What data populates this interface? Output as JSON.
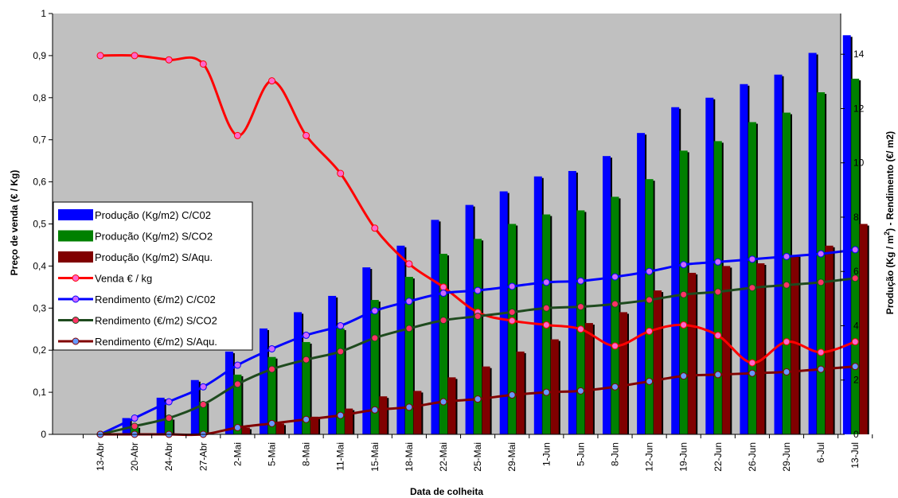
{
  "chart_data": {
    "type": "bar",
    "categories": [
      "13-Abr",
      "20-Abr",
      "24-Abr",
      "27-Abr",
      "2-Mai",
      "5-Mai",
      "8-Mai",
      "11-Mai",
      "15-Mai",
      "18-Mai",
      "22-Mai",
      "25-Mai",
      "29-Mai",
      "1-Jun",
      "5-Jun",
      "8-Jun",
      "12-Jun",
      "19-Jun",
      "22-Jun",
      "26-Jun",
      "29-Jun",
      "6-Jul",
      "13-Jul"
    ],
    "xlabel": "Data de colheita",
    "ylabel_left": "Preço de venda (€ / Kg)",
    "ylabel_right_parts": [
      "Produção (Kg / m",
      "2",
      ") - Rendimento (€/ m2)"
    ],
    "ylim_left": [
      0,
      1
    ],
    "yticks_left": [
      "0",
      "0,1",
      "0,2",
      "0,3",
      "0,4",
      "0,5",
      "0,6",
      "0,7",
      "0,8",
      "0,9",
      "1"
    ],
    "ylim_right": [
      0,
      15.5
    ],
    "yticks_right": [
      "0",
      "2",
      "4",
      "6",
      "8",
      "10",
      "12",
      "14"
    ],
    "grid": false,
    "plot_background": "#c0c0c0",
    "legend_position": "center-left",
    "bar_series": [
      {
        "name": "Produção (Kg/m2)  C/C02",
        "color": "#0000ff",
        "axis": "right",
        "values": [
          0,
          0.6,
          1.35,
          2.0,
          3.05,
          3.9,
          4.5,
          5.1,
          6.15,
          6.95,
          7.9,
          8.45,
          8.95,
          9.5,
          9.7,
          10.25,
          11.1,
          12.05,
          12.4,
          12.9,
          13.25,
          14.05,
          14.7
        ]
      },
      {
        "name": "Produção (Kg/m2) S/CO2",
        "color": "#008000",
        "axis": "right",
        "values": [
          0,
          0.3,
          0.6,
          1.2,
          2.2,
          2.85,
          3.4,
          3.9,
          4.95,
          5.8,
          6.65,
          7.2,
          7.75,
          8.1,
          8.25,
          8.75,
          9.4,
          10.45,
          10.8,
          11.5,
          11.85,
          12.6,
          13.1
        ]
      },
      {
        "name": "Produção (Kg/m2) S/Aqu.",
        "color": "#800000",
        "axis": "right",
        "values": [
          0,
          0,
          0,
          0,
          0.25,
          0.4,
          0.65,
          0.95,
          1.4,
          1.6,
          2.1,
          2.5,
          3.05,
          3.5,
          4.1,
          4.5,
          5.3,
          5.95,
          6.2,
          6.3,
          6.6,
          6.95,
          7.75
        ]
      }
    ],
    "line_series": [
      {
        "name": "Venda € / kg",
        "color": "#ff0000",
        "axis": "left",
        "values": [
          0.9,
          0.9,
          0.89,
          0.88,
          0.71,
          0.84,
          0.71,
          0.62,
          0.49,
          0.405,
          0.35,
          0.29,
          0.27,
          0.26,
          0.25,
          0.21,
          0.245,
          0.26,
          0.235,
          0.17,
          0.22,
          0.195,
          0.22
        ]
      },
      {
        "name": "Rendimento (€/m2)  C/C02",
        "color": "#0000ff",
        "axis": "right",
        "values": [
          0,
          0.6,
          1.2,
          1.75,
          2.55,
          3.15,
          3.65,
          4.0,
          4.55,
          4.9,
          5.2,
          5.3,
          5.45,
          5.6,
          5.65,
          5.8,
          6.0,
          6.25,
          6.35,
          6.45,
          6.55,
          6.65,
          6.8
        ]
      },
      {
        "name": "Rendimento (€/m2) S/CO2",
        "color": "#1e4a1e",
        "axis": "right",
        "values": [
          0,
          0.3,
          0.6,
          1.1,
          1.85,
          2.4,
          2.75,
          3.05,
          3.55,
          3.9,
          4.2,
          4.35,
          4.5,
          4.65,
          4.7,
          4.8,
          4.95,
          5.15,
          5.25,
          5.4,
          5.5,
          5.6,
          5.75
        ]
      },
      {
        "name": "Rendimento (€/m2) S/Aqu.",
        "color": "#800000",
        "axis": "right",
        "values": [
          0,
          0,
          0,
          0,
          0.25,
          0.4,
          0.55,
          0.7,
          0.9,
          1.0,
          1.2,
          1.3,
          1.45,
          1.55,
          1.6,
          1.75,
          1.95,
          2.15,
          2.2,
          2.25,
          2.3,
          2.4,
          2.5
        ]
      }
    ]
  }
}
